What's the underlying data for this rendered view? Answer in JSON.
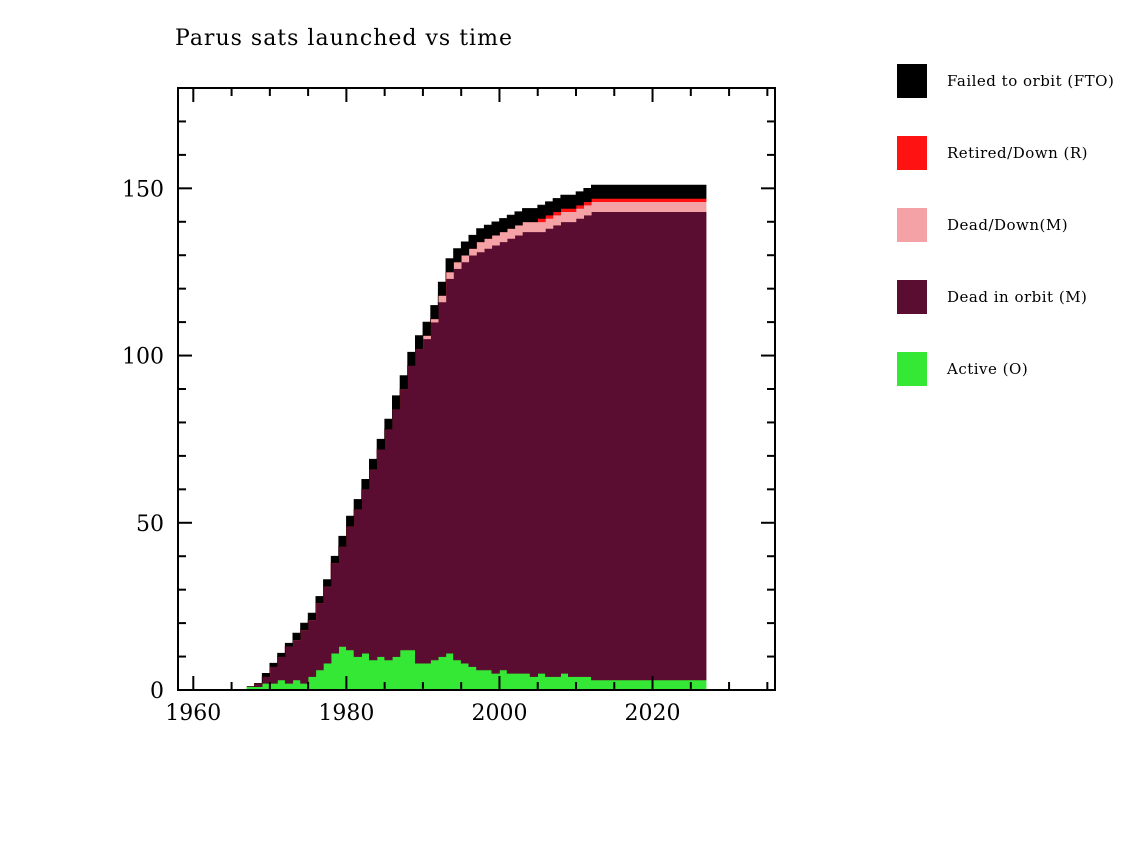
{
  "title": "Parus sats launched vs time",
  "legend": [
    {
      "label": "Failed to orbit (FTO)",
      "color": "#000000"
    },
    {
      "label": "Retired/Down (R)",
      "color": "#ff1212"
    },
    {
      "label": "Dead/Down(M)",
      "color": "#f5a2a6"
    },
    {
      "label": "Dead in orbit (M)",
      "color": "#5a0d30"
    },
    {
      "label": "Active (O)",
      "color": "#35e835"
    }
  ],
  "chart_data": {
    "type": "area",
    "stacked": true,
    "title": "Parus sats launched vs time",
    "xlabel": "",
    "ylabel": "",
    "xlim": [
      1958,
      2036
    ],
    "ylim": [
      0,
      180
    ],
    "x_ticks_major": [
      1960,
      1980,
      2000,
      2020
    ],
    "x_minor_step": 5,
    "y_ticks_major": [
      0,
      50,
      100,
      150
    ],
    "y_minor_step": 10,
    "legend_position": "right",
    "grid": false,
    "x": [
      1967,
      1968,
      1969,
      1970,
      1971,
      1972,
      1973,
      1974,
      1975,
      1976,
      1977,
      1978,
      1979,
      1980,
      1981,
      1982,
      1983,
      1984,
      1985,
      1986,
      1987,
      1988,
      1989,
      1990,
      1991,
      1992,
      1993,
      1994,
      1995,
      1996,
      1997,
      1998,
      1999,
      2000,
      2001,
      2002,
      2003,
      2004,
      2005,
      2006,
      2007,
      2008,
      2009,
      2010,
      2011,
      2012,
      2013,
      2014,
      2015,
      2016,
      2017,
      2018,
      2019,
      2020,
      2021,
      2022,
      2023,
      2024,
      2025,
      2026
    ],
    "series": [
      {
        "name": "Active (O)",
        "color": "#35e835",
        "values": [
          1,
          1,
          2,
          2,
          3,
          2,
          3,
          2,
          4,
          6,
          8,
          11,
          13,
          12,
          10,
          11,
          9,
          10,
          9,
          10,
          12,
          12,
          8,
          8,
          9,
          10,
          11,
          9,
          8,
          7,
          6,
          6,
          5,
          6,
          5,
          5,
          5,
          4,
          5,
          4,
          4,
          5,
          4,
          4,
          4,
          3,
          3,
          3,
          3,
          3,
          3,
          3,
          3,
          3,
          3,
          3,
          3,
          3,
          3,
          3
        ]
      },
      {
        "name": "Dead in orbit (M)",
        "color": "#5a0d30",
        "values": [
          0,
          1,
          2,
          5,
          7,
          11,
          12,
          16,
          17,
          20,
          23,
          27,
          30,
          37,
          44,
          49,
          57,
          62,
          69,
          74,
          78,
          85,
          94,
          97,
          101,
          106,
          112,
          117,
          120,
          123,
          125,
          126,
          128,
          128,
          130,
          131,
          132,
          133,
          132,
          134,
          135,
          135,
          136,
          137,
          138,
          140,
          140,
          140,
          140,
          140,
          140,
          140,
          140,
          140,
          140,
          140,
          140,
          140,
          140,
          140
        ]
      },
      {
        "name": "Dead/Down(M)",
        "color": "#f5a2a6",
        "values": [
          0,
          0,
          0,
          0,
          0,
          0,
          0,
          0,
          0,
          0,
          0,
          0,
          0,
          0,
          0,
          0,
          0,
          0,
          0,
          0,
          0,
          0,
          0,
          1,
          1,
          2,
          2,
          2,
          2,
          2,
          3,
          3,
          3,
          3,
          3,
          3,
          3,
          3,
          3,
          3,
          3,
          3,
          3,
          3,
          3,
          3,
          3,
          3,
          3,
          3,
          3,
          3,
          3,
          3,
          3,
          3,
          3,
          3,
          3,
          3
        ]
      },
      {
        "name": "Retired/Down (R)",
        "color": "#ff1212",
        "values": [
          0,
          0,
          0,
          0,
          0,
          0,
          0,
          0,
          0,
          0,
          0,
          0,
          0,
          0,
          0,
          0,
          0,
          0,
          0,
          0,
          0,
          0,
          0,
          0,
          0,
          0,
          0,
          0,
          0,
          0,
          0,
          0,
          0,
          0,
          0,
          0,
          0,
          0,
          1,
          1,
          1,
          1,
          1,
          1,
          1,
          1,
          1,
          1,
          1,
          1,
          1,
          1,
          1,
          1,
          1,
          1,
          1,
          1,
          1,
          1
        ]
      },
      {
        "name": "Failed to orbit (FTO)",
        "color": "#000000",
        "values": [
          0,
          0,
          1,
          1,
          1,
          1,
          2,
          2,
          2,
          2,
          2,
          2,
          3,
          3,
          3,
          3,
          3,
          3,
          3,
          4,
          4,
          4,
          4,
          4,
          4,
          4,
          4,
          4,
          4,
          4,
          4,
          4,
          4,
          4,
          4,
          4,
          4,
          4,
          4,
          4,
          4,
          4,
          4,
          4,
          4,
          4,
          4,
          4,
          4,
          4,
          4,
          4,
          4,
          4,
          4,
          4,
          4,
          4,
          4,
          4
        ]
      }
    ]
  }
}
